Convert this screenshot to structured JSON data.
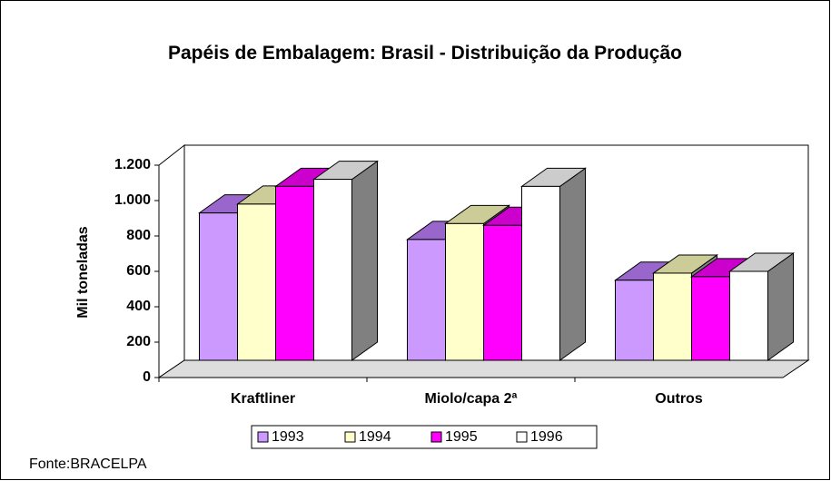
{
  "chart_data": {
    "type": "bar3d",
    "title": "Papéis de Embalagem: Brasil - Distribuição da Produção",
    "y_label": "Mil toneladas",
    "source": "Fonte:BRACELPA",
    "categories": [
      "Kraftliner",
      "Miolo/capa 2ª",
      "Outros"
    ],
    "series": [
      {
        "name": "1993",
        "color": "#cc99ff",
        "top_color": "#9966cc",
        "values": [
          930,
          780,
          550
        ]
      },
      {
        "name": "1994",
        "color": "#ffffcc",
        "top_color": "#cccc99",
        "values": [
          980,
          870,
          590
        ]
      },
      {
        "name": "1995",
        "color": "#ff00ff",
        "top_color": "#cc00cc",
        "values": [
          1080,
          860,
          570
        ]
      },
      {
        "name": "1996",
        "color": "#ffffff",
        "top_color": "#cccccc",
        "values": [
          1120,
          1080,
          600
        ]
      }
    ],
    "ylim": [
      0,
      1200
    ],
    "yticks": [
      0,
      200,
      400,
      600,
      800,
      {
        "value": 1000,
        "label": "1.000"
      },
      {
        "value": 1200,
        "label": "1.200"
      }
    ],
    "legend": "bottom"
  }
}
